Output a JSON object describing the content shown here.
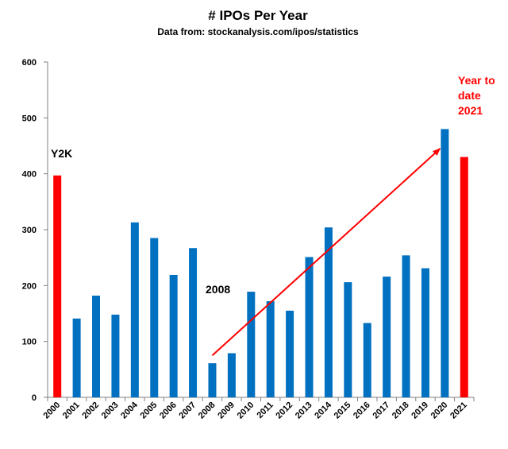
{
  "chart_data": {
    "type": "bar",
    "title": "# IPOs Per Year",
    "subtitle": "Data from: stockanalysis.com/ipos/statistics",
    "xlabel": "",
    "ylabel": "",
    "categories": [
      "2000",
      "2001",
      "2002",
      "2003",
      "2004",
      "2005",
      "2006",
      "2007",
      "2008",
      "2009",
      "2010",
      "2011",
      "2012",
      "2013",
      "2014",
      "2015",
      "2016",
      "2017",
      "2018",
      "2019",
      "2020",
      "2021"
    ],
    "values": [
      397,
      141,
      182,
      148,
      313,
      285,
      219,
      267,
      61,
      79,
      189,
      172,
      155,
      251,
      304,
      206,
      133,
      216,
      254,
      231,
      480,
      430
    ],
    "bar_colors": [
      "#ff0000",
      "#0070c0",
      "#0070c0",
      "#0070c0",
      "#0070c0",
      "#0070c0",
      "#0070c0",
      "#0070c0",
      "#0070c0",
      "#0070c0",
      "#0070c0",
      "#0070c0",
      "#0070c0",
      "#0070c0",
      "#0070c0",
      "#0070c0",
      "#0070c0",
      "#0070c0",
      "#0070c0",
      "#0070c0",
      "#0070c0",
      "#ff0000"
    ],
    "ylim": [
      0,
      600
    ],
    "yticks": [
      0,
      100,
      200,
      300,
      400,
      500,
      600
    ],
    "grid": false,
    "legend": "none",
    "annotations": [
      {
        "id": "y2k",
        "lines": [
          "Y2K"
        ],
        "color": "#000000"
      },
      {
        "id": "y2008",
        "lines": [
          "2008"
        ],
        "color": "#000000"
      },
      {
        "id": "ytd",
        "lines": [
          "Year to",
          "date",
          "2021"
        ],
        "color": "#ff0000"
      }
    ],
    "trend_arrow": {
      "color": "#ff0000",
      "from": {
        "x": "2008",
        "y": 75
      },
      "to": {
        "x": "2020",
        "y": 445
      }
    }
  }
}
